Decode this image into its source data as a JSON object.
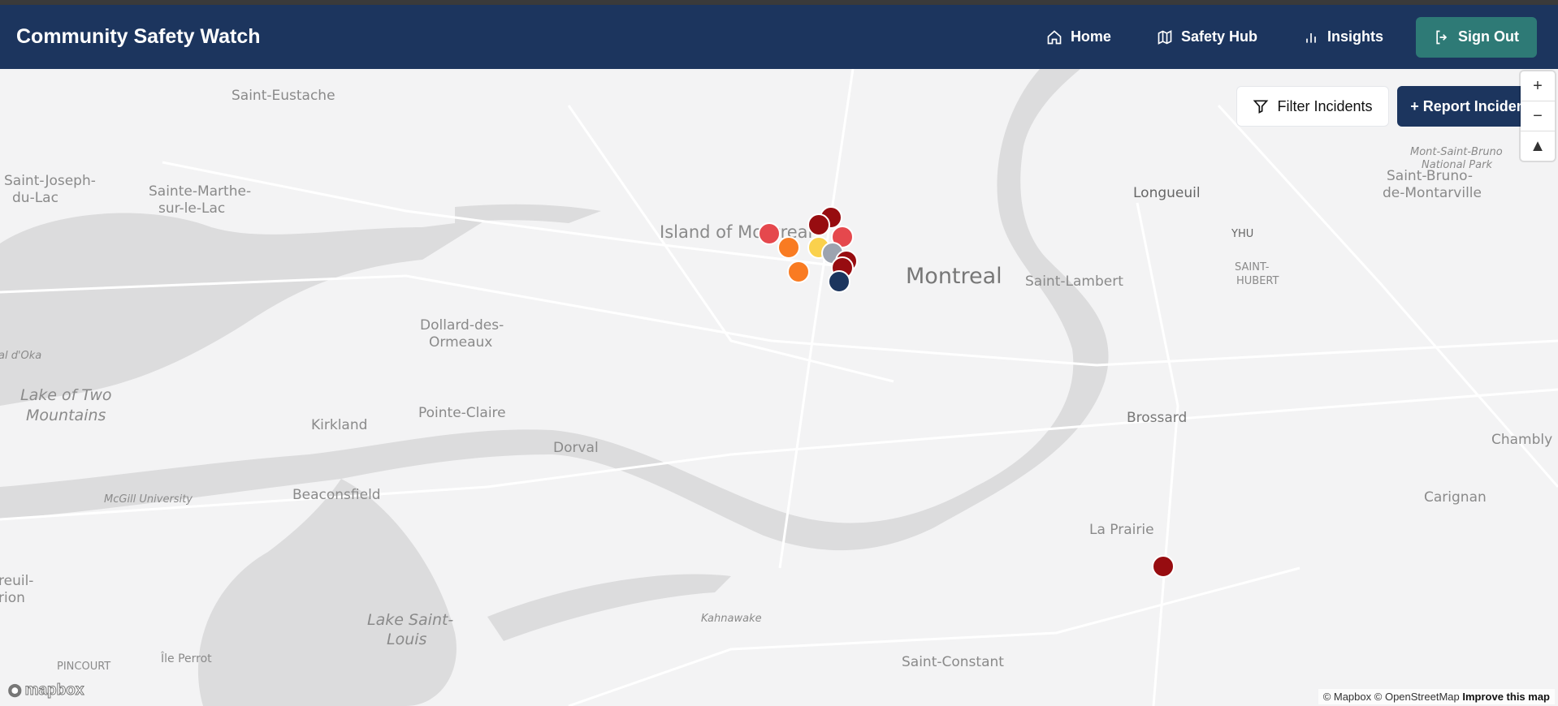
{
  "app": {
    "title": "Community Safety Watch"
  },
  "nav": [
    {
      "label": "Home",
      "icon": "home-icon"
    },
    {
      "label": "Safety Hub",
      "icon": "map-icon"
    },
    {
      "label": "Insights",
      "icon": "bar-chart-icon"
    },
    {
      "label": "Sign Out",
      "icon": "sign-out-icon"
    }
  ],
  "toolbar": {
    "filter_label": "Filter Incidents",
    "report_label": "+ Report Incident"
  },
  "map": {
    "labels": [
      "Saint-Eustache",
      "Saint-Joseph-",
      "du-Lac",
      "Sainte-Marthe-",
      "sur-le-Lac",
      "Island of Montreal",
      "Montreal",
      "Longueuil",
      "YHU",
      "SAINT-",
      "HUBERT",
      "Saint-Lambert",
      "Mont-Saint-Bruno",
      "National Park",
      "Saint-Bruno-",
      "de-Montarville",
      "Dollard-des-",
      "Ormeaux",
      "Lake of Two",
      "Mountains",
      "Pointe-Claire",
      "Kirkland",
      "Dorval",
      "Beaconsfield",
      "McGill University",
      "Brossard",
      "Chambly",
      "Carignan",
      "La Prairie",
      "Kahnawake",
      "Lake Saint-",
      "Louis",
      "Île Perrot",
      "Saint-Constant",
      "PINCOURT",
      "al d'Oka",
      "reuil-",
      "rion"
    ],
    "incident_colors": {
      "high": "#e5484d",
      "critical": "#970c10",
      "medium": "#f97b22",
      "low": "#fad14d",
      "unknown": "#9ca3af",
      "other": "#1c355e"
    },
    "incidents": [
      {
        "severity": "high"
      },
      {
        "severity": "medium"
      },
      {
        "severity": "medium"
      },
      {
        "severity": "critical"
      },
      {
        "severity": "critical"
      },
      {
        "severity": "high"
      },
      {
        "severity": "low"
      },
      {
        "severity": "unknown"
      },
      {
        "severity": "critical"
      },
      {
        "severity": "critical"
      },
      {
        "severity": "other"
      },
      {
        "severity": "critical"
      }
    ],
    "attribution": {
      "mapbox": "© Mapbox",
      "osm": "© OpenStreetMap",
      "improve": "Improve this map",
      "logo": "mapbox"
    }
  }
}
